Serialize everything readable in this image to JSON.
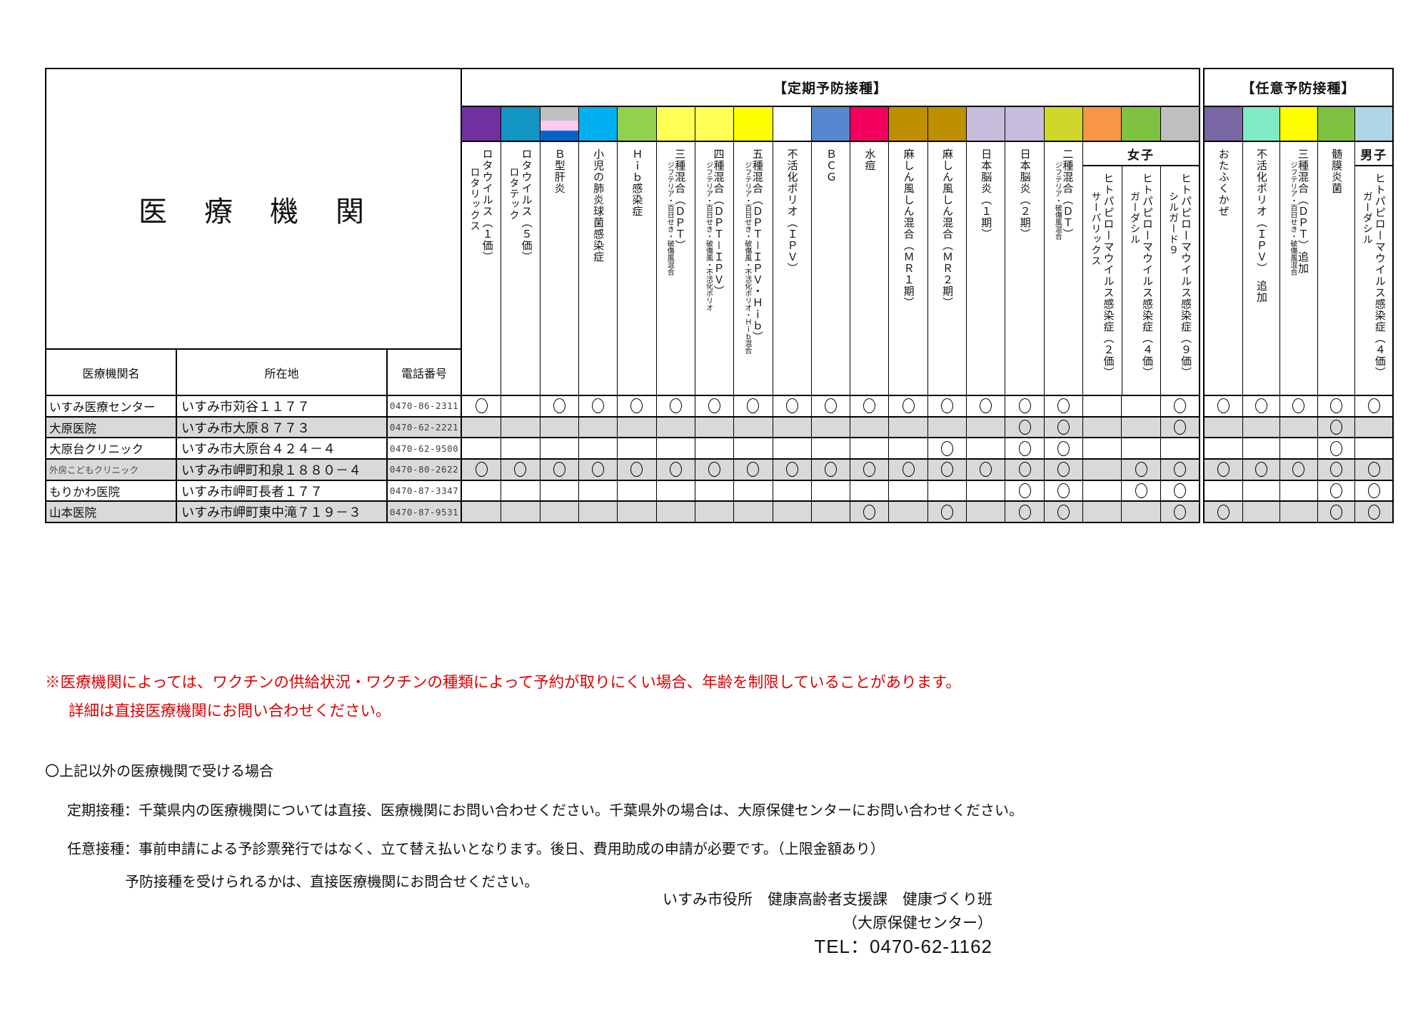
{
  "title_cell": "医　療　機　関",
  "table_headers": {
    "name": "医療機関名",
    "address": "所在地",
    "tel": "電話番号"
  },
  "mark_symbol": "○",
  "colors": {
    "row_alt": "#D9D9D9",
    "note_red": "#DD0000",
    "border": "#000000"
  },
  "vaccine_blocks": [
    {
      "title": "【定期予防接種】",
      "columns": [
        {
          "id": "rotavirus-1",
          "name": "ロタウイルス（１価）",
          "brand": "ロタリックス",
          "color": "#7030A0"
        },
        {
          "id": "rotavirus-5",
          "name": "ロタウイルス（５価）",
          "brand": "ロタテック",
          "color": "#1295C5"
        },
        {
          "id": "hep-b",
          "name": "Ｂ型肝炎",
          "stripes": [
            "#C0C0C0",
            "#FFC9F2",
            "#0066CC"
          ]
        },
        {
          "id": "pneumococcus",
          "name": "小児の肺炎球菌感染症",
          "color": "#00B0F0"
        },
        {
          "id": "hib",
          "name": "Ｈｉｂ感染症",
          "color": "#92D050"
        },
        {
          "id": "dpt",
          "name": "三種混合（ＤＰＴ）",
          "sub": "ジフテリア・百日せき・破傷風混合",
          "color": "#FFFF54"
        },
        {
          "id": "dpt-ipv",
          "name": "四種混合（ＤＰＴ－ＩＰＶ）",
          "sub": "ジフテリア・百日せき・破傷風・不活化ポリオ",
          "color": "#FFFF54"
        },
        {
          "id": "dpt-ipv-hib",
          "name": "五種混合（ＤＰＴ－ＩＰＶ・Ｈｉｂ）",
          "sub": "ジフテリア・百日せき・破傷風・不活化ポリオ・Ｈｉｂ混合",
          "color": "#FFFF00"
        },
        {
          "id": "ipv",
          "name": "不活化ポリオ（ＩＰＶ）",
          "color": "#FFFFFF"
        },
        {
          "id": "bcg",
          "name": "ＢＣＧ",
          "color": "#5588CE"
        },
        {
          "id": "varicella",
          "name": "水痘",
          "color": "#F3005F"
        },
        {
          "id": "mr1",
          "name": "麻しん風しん混合（ＭＲ１期）",
          "color": "#BE8F00"
        },
        {
          "id": "mr2",
          "name": "麻しん風しん混合（ＭＲ２期）",
          "color": "#BE8F00"
        },
        {
          "id": "je1",
          "name": "日本脳炎（１期）",
          "color": "#C6BCDB"
        },
        {
          "id": "je2",
          "name": "日本脳炎（２期）",
          "color": "#C6BCDB"
        },
        {
          "id": "dt",
          "name": "二種混合（ＤＴ）",
          "sub": "ジフテリア・破傷風混合",
          "color": "#CFD72B"
        },
        {
          "id": "hpv2",
          "name": "ヒトパピローマウイルス感染症（２価）",
          "brand": "サーバリックス",
          "color": "#F79646",
          "gender": "女子"
        },
        {
          "id": "hpv4",
          "name": "ヒトパピローマウイルス感染症（４価）",
          "brand": "ガーダシル",
          "color": "#7FC241",
          "gender": "女子"
        },
        {
          "id": "hpv9",
          "name": "ヒトパピローマウイルス感染症（９価）",
          "brand": "シルガード９",
          "color": "#BFBFBF",
          "gender": "女子"
        }
      ]
    },
    {
      "title": "【任意予防接種】",
      "columns": [
        {
          "id": "mumps",
          "name": "おたふくかぜ",
          "color": "#7966A4"
        },
        {
          "id": "ipv-booster",
          "name": "不活化ポリオ（ＩＰＶ）　追加",
          "color": "#7FEAC4"
        },
        {
          "id": "dpt-booster",
          "name": "三種混合（ＤＰＴ）追加",
          "sub": "ジフテリア・百日せき・破傷風混合",
          "color": "#FFFF00"
        },
        {
          "id": "meningococcus",
          "name": "髄膜炎菌",
          "color": "#7FC241"
        },
        {
          "id": "hpv4-male",
          "name": "ヒトパピローマウイルス感染症（４価）",
          "brand": "ガーダシル",
          "color": "#AFD6E4",
          "gender": "男子"
        }
      ]
    }
  ],
  "institutions": [
    {
      "name": "いすみ医療センター",
      "address": "いすみ市苅谷１１７７",
      "tel": "0470-86-2311",
      "marks": [
        1,
        0,
        1,
        1,
        1,
        1,
        1,
        1,
        1,
        1,
        1,
        1,
        1,
        1,
        1,
        1,
        0,
        0,
        1,
        1,
        1,
        1,
        1,
        1
      ]
    },
    {
      "name": "大原医院",
      "address": "いすみ市大原８７７３",
      "tel": "0470-62-2221",
      "marks": [
        0,
        0,
        0,
        0,
        0,
        0,
        0,
        0,
        0,
        0,
        0,
        0,
        0,
        0,
        1,
        1,
        0,
        0,
        1,
        0,
        0,
        0,
        1,
        0
      ]
    },
    {
      "name": "大原台クリニック",
      "address": "いすみ市大原台４２４－４",
      "tel": "0470-62-9500",
      "marks": [
        0,
        0,
        0,
        0,
        0,
        0,
        0,
        0,
        0,
        0,
        0,
        0,
        1,
        0,
        1,
        1,
        0,
        0,
        0,
        0,
        0,
        0,
        1,
        0
      ]
    },
    {
      "name": "外房こどもクリニック",
      "address": "いすみ市岬町和泉１８８０－４",
      "tel": "0470-80-2622",
      "marks": [
        1,
        1,
        1,
        1,
        1,
        1,
        1,
        1,
        1,
        1,
        1,
        1,
        1,
        1,
        1,
        1,
        0,
        1,
        1,
        1,
        1,
        1,
        1,
        1
      ]
    },
    {
      "name": "もりかわ医院",
      "address": "いすみ市岬町長者１７７",
      "tel": "0470-87-3347",
      "marks": [
        0,
        0,
        0,
        0,
        0,
        0,
        0,
        0,
        0,
        0,
        0,
        0,
        0,
        0,
        1,
        1,
        0,
        1,
        1,
        0,
        0,
        0,
        1,
        1
      ]
    },
    {
      "name": "山本医院",
      "address": "いすみ市岬町東中滝７１９－３",
      "tel": "0470-87-9531",
      "marks": [
        0,
        0,
        0,
        0,
        0,
        0,
        0,
        0,
        0,
        0,
        1,
        0,
        1,
        0,
        1,
        1,
        0,
        0,
        1,
        1,
        0,
        0,
        1,
        1
      ]
    }
  ],
  "notes": {
    "red_line1": "※医療機関によっては、ワクチンの供給状況・ワクチンの種類によって予約が取りにくい場合、年齢を制限していることがあります。",
    "red_line2": "詳細は直接医療機関にお問い合わせください。",
    "other_title": "〇上記以外の医療機関で受ける場合",
    "teiki_line": "定期接種：千葉県内の医療機関については直接、医療機関にお問い合わせください。千葉県外の場合は、大原保健センターにお問い合わせください。",
    "nini_line1": "任意接種：事前申請による予診票発行ではなく、立て替え払いとなります。後日、費用助成の申請が必要です。（上限金額あり）",
    "nini_line2": "予防接種を受けられるかは、直接医療機関にお問合せください。"
  },
  "footer": {
    "line1": "いすみ市役所　健康高齢者支援課　健康づくり班",
    "line2": "（大原保健センター）",
    "line3": "TEL：0470-62-1162"
  }
}
